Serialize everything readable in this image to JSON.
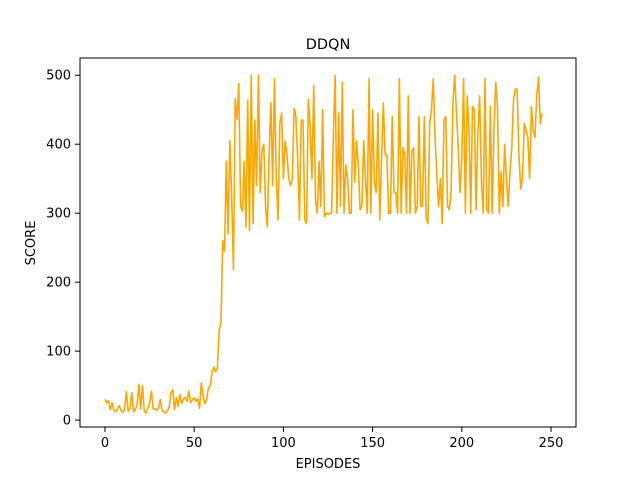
{
  "chart_data": {
    "type": "line",
    "title": "DDQN",
    "xlabel": "EPISODES",
    "ylabel": "SCORE",
    "xlim": [
      -14,
      264
    ],
    "ylim": [
      -10,
      525
    ],
    "xticks": [
      0,
      50,
      100,
      150,
      200,
      250
    ],
    "yticks": [
      0,
      100,
      200,
      300,
      400,
      500
    ],
    "grid": false,
    "color": "#ffa500",
    "series": [
      {
        "values": [
          30,
          25,
          28,
          15,
          25,
          14,
          12,
          17,
          21,
          14,
          11,
          16,
          41,
          13,
          16,
          40,
          12,
          15,
          22,
          52,
          16,
          50,
          14,
          10,
          17,
          25,
          42,
          16,
          17,
          14,
          17,
          30,
          14,
          12,
          10,
          14,
          19,
          40,
          44,
          15,
          33,
          20,
          37,
          24,
          31,
          33,
          27,
          42,
          25,
          30,
          32,
          27,
          31,
          17,
          54,
          35,
          24,
          30,
          47,
          50,
          69,
          77,
          70,
          75,
          131,
          140,
          260,
          245,
          375,
          270,
          405,
          325,
          218,
          466,
          436,
          488,
          310,
          303,
          375,
          280,
          464,
          275,
          500,
          285,
          435,
          340,
          500,
          330,
          390,
          400,
          310,
          280,
          385,
          460,
          340,
          495,
          350,
          290,
          430,
          445,
          350,
          405,
          385,
          350,
          340,
          350,
          452,
          440,
          380,
          290,
          435,
          435,
          290,
          285,
          465,
          425,
          350,
          485,
          320,
          300,
          375,
          310,
          450,
          295,
          300,
          298,
          300,
          300,
          410,
          500,
          300,
          445,
          310,
          490,
          300,
          370,
          350,
          300,
          300,
          450,
          345,
          405,
          370,
          305,
          310,
          405,
          350,
          300,
          495,
          300,
          450,
          345,
          330,
          445,
          290,
          375,
          460,
          385,
          385,
          300,
          300,
          440,
          330,
          330,
          300,
          495,
          300,
          395,
          385,
          300,
          470,
          300,
          390,
          395,
          300,
          310,
          440,
          310,
          310,
          440,
          295,
          285,
          430,
          450,
          495,
          410,
          355,
          310,
          350,
          285,
          435,
          440,
          310,
          305,
          330,
          460,
          500,
          445,
          395,
          330,
          380,
          495,
          300,
          470,
          420,
          300,
          455,
          450,
          305,
          415,
          470,
          345,
          300,
          495,
          305,
          300,
          455,
          300,
          420,
          490,
          455,
          300,
          360,
          310,
          400,
          350,
          310,
          360,
          395,
          465,
          480,
          480,
          385,
          335,
          350,
          430,
          420,
          410,
          350,
          455,
          420,
          410,
          470,
          497,
          430,
          445
        ]
      }
    ]
  }
}
